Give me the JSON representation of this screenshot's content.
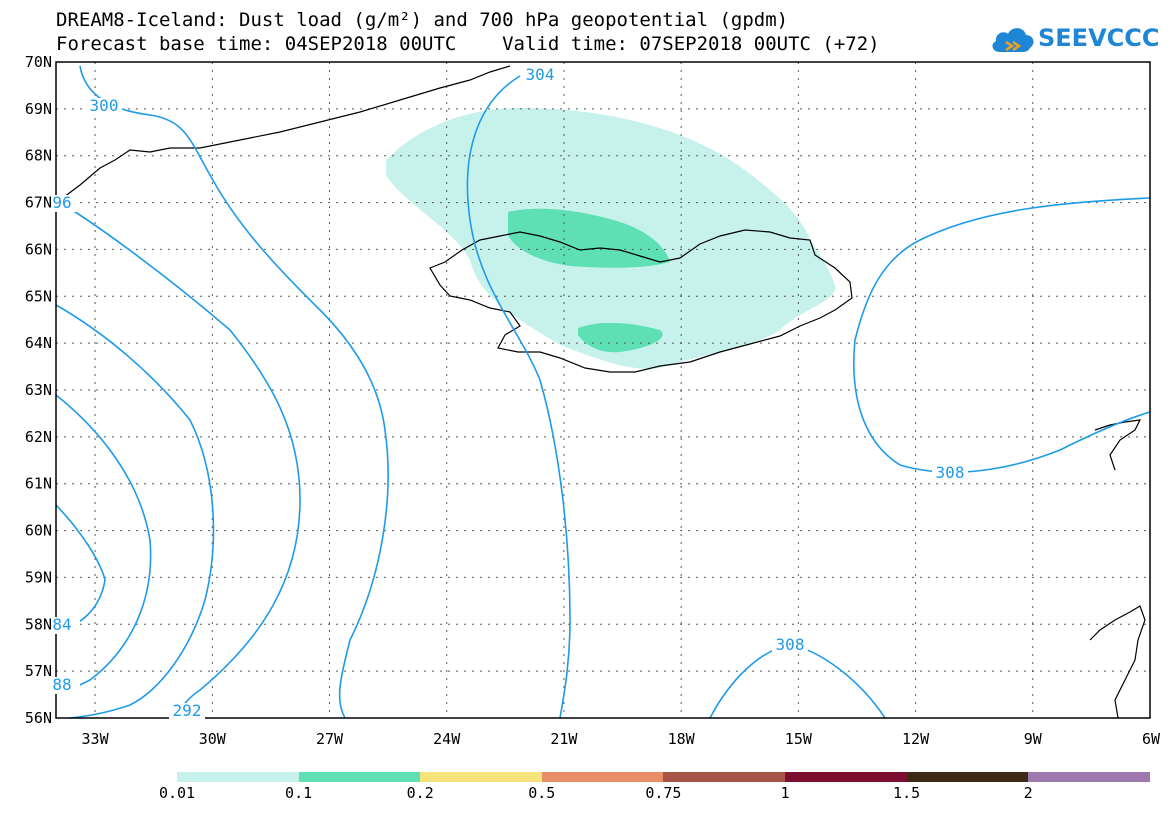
{
  "header": {
    "title_line1": "DREAM8-Iceland: Dust load (g/m²) and 700 hPa geopotential (gpdm)",
    "title_line2": "Forecast base time: 04SEP2018 00UTC    Valid time: 07SEP2018 00UTC (+72)",
    "logo_text": "SEEVCCC",
    "logo_icon": "cloud-icon"
  },
  "map": {
    "lon_range": [
      -34,
      -6
    ],
    "lat_range": [
      56,
      70
    ],
    "lat_labels": [
      "70N",
      "69N",
      "68N",
      "67N",
      "66N",
      "65N",
      "64N",
      "63N",
      "62N",
      "61N",
      "60N",
      "59N",
      "58N",
      "57N",
      "56N"
    ],
    "lon_labels": [
      "33W",
      "30W",
      "27W",
      "24W",
      "21W",
      "18W",
      "15W",
      "12W",
      "9W",
      "6W"
    ],
    "contour_labels": [
      "300",
      "304",
      "308",
      "308",
      "292",
      "84",
      "88",
      "96"
    ],
    "colors": {
      "contour": "#1e9be8",
      "coast": "#000000",
      "dust_low": "#c6f2eb",
      "dust_mid": "#5ee0b4"
    }
  },
  "legend": {
    "labels": [
      "0.01",
      "0.1",
      "0.2",
      "0.5",
      "0.75",
      "1",
      "1.5",
      "2"
    ],
    "colors": [
      "#c6f2eb",
      "#5ee0b4",
      "#f7e37c",
      "#e88e68",
      "#a85448",
      "#7c0e30",
      "#3c2a14",
      "#a078b0"
    ]
  }
}
